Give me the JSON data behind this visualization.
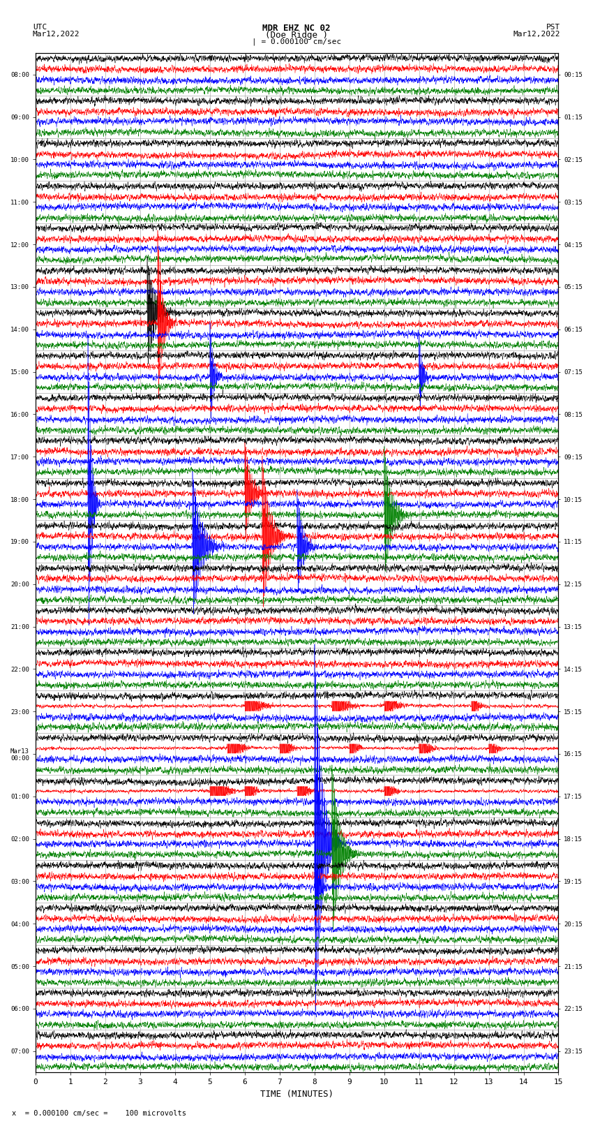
{
  "title_line1": "MDR EHZ NC 02",
  "title_line2": "(Doe Ridge )",
  "scale_label": "| = 0.000100 cm/sec",
  "left_label_top": "UTC",
  "left_label_date": "Mar12,2022",
  "right_label_top": "PST",
  "right_label_date": "Mar12,2022",
  "bottom_label": "TIME (MINUTES)",
  "bottom_note": "x  = 0.000100 cm/sec =    100 microvolts",
  "utc_times": [
    "08:00",
    "09:00",
    "10:00",
    "11:00",
    "12:00",
    "13:00",
    "14:00",
    "15:00",
    "16:00",
    "17:00",
    "18:00",
    "19:00",
    "20:00",
    "21:00",
    "22:00",
    "23:00",
    "Mar13\n00:00",
    "01:00",
    "02:00",
    "03:00",
    "04:00",
    "05:00",
    "06:00",
    "07:00"
  ],
  "pst_times": [
    "00:15",
    "01:15",
    "02:15",
    "03:15",
    "04:15",
    "05:15",
    "06:15",
    "07:15",
    "08:15",
    "09:15",
    "10:15",
    "11:15",
    "12:15",
    "13:15",
    "14:15",
    "15:15",
    "16:15",
    "17:15",
    "18:15",
    "19:15",
    "20:15",
    "21:15",
    "22:15",
    "23:15"
  ],
  "n_hours": 24,
  "minutes_per_row": 15,
  "bg_color": "#ffffff",
  "grid_color": "#999999",
  "trace_colors": [
    "black",
    "red",
    "blue",
    "green"
  ],
  "quiet_noise": 0.018,
  "medium_noise": 0.07,
  "loud_noise": 0.18
}
